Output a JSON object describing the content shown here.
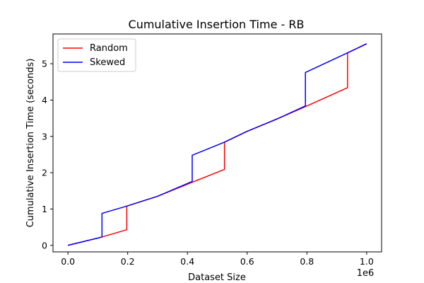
{
  "chart_data": {
    "type": "line",
    "title": "Cumulative Insertion Time - RB",
    "xlabel": "Dataset Size",
    "ylabel": "Cumulative Insertion Time (seconds)",
    "x_offset_label": "1e6",
    "xlim": [
      -0.05,
      1.05
    ],
    "ylim": [
      -0.18,
      5.82
    ],
    "x_ticks": [
      0.0,
      0.2,
      0.4,
      0.6,
      0.8,
      1.0
    ],
    "x_tick_labels": [
      "0.0",
      "0.2",
      "0.4",
      "0.6",
      "0.8",
      "1.0"
    ],
    "y_ticks": [
      0,
      1,
      2,
      3,
      4,
      5
    ],
    "y_tick_labels": [
      "0",
      "1",
      "2",
      "3",
      "4",
      "5"
    ],
    "grid": false,
    "legend_position": "upper-left",
    "series": [
      {
        "name": "Random",
        "color": "#ff0000",
        "x": [
          0.0,
          0.05,
          0.1,
          0.114,
          0.197,
          0.197,
          0.3,
          0.42,
          0.524,
          0.524,
          0.6,
          0.7,
          0.795,
          0.936,
          0.936,
          1.0
        ],
        "y": [
          0.0,
          0.1,
          0.2,
          0.23,
          0.43,
          1.08,
          1.35,
          1.75,
          2.09,
          2.84,
          3.14,
          3.48,
          3.82,
          4.34,
          5.3,
          5.55
        ]
      },
      {
        "name": "Skewed",
        "color": "#0000ff",
        "x": [
          0.0,
          0.05,
          0.1,
          0.114,
          0.114,
          0.197,
          0.3,
          0.416,
          0.416,
          0.524,
          0.6,
          0.7,
          0.795,
          0.795,
          0.936,
          1.0
        ],
        "y": [
          0.0,
          0.1,
          0.2,
          0.23,
          0.88,
          1.08,
          1.35,
          1.76,
          2.48,
          2.84,
          3.14,
          3.48,
          3.84,
          4.76,
          5.3,
          5.55
        ]
      }
    ]
  }
}
